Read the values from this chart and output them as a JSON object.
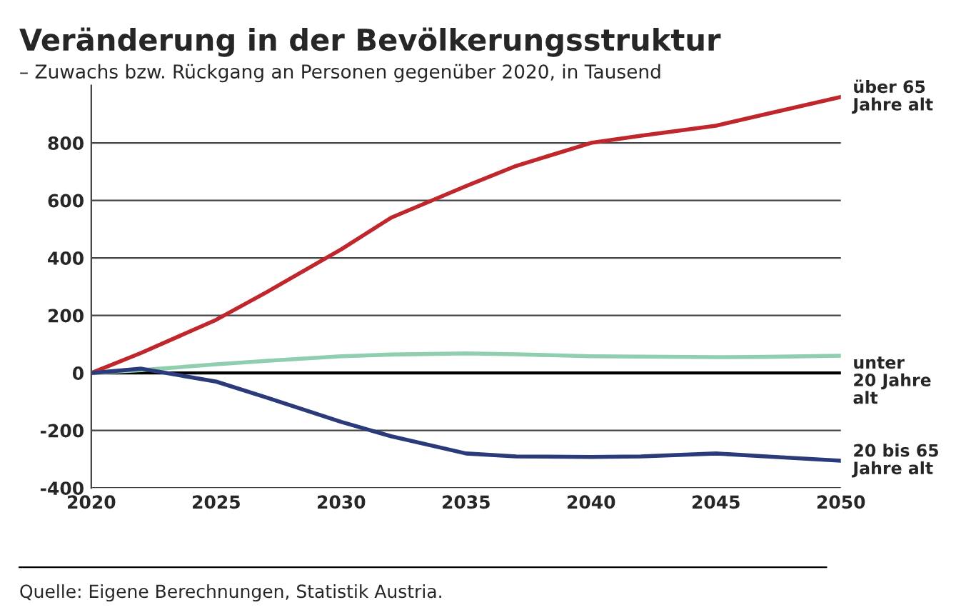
{
  "chart_data": {
    "type": "line",
    "title": "Veränderung in der Bevölkerungsstruktur",
    "subtitle": "– Zuwachs bzw. Rückgang an Personen gegenüber 2020, in Tausend",
    "x": [
      2020,
      2022,
      2025,
      2027,
      2030,
      2032,
      2035,
      2037,
      2040,
      2042,
      2045,
      2047,
      2050
    ],
    "series": [
      {
        "name": "über 65\nJahre alt",
        "color": "#c0272d",
        "values": [
          0,
          70,
          185,
          280,
          430,
          540,
          650,
          720,
          800,
          825,
          860,
          900,
          960
        ]
      },
      {
        "name": "unter\n20 Jahre\nalt",
        "color": "#8fcfb0",
        "values": [
          0,
          10,
          30,
          42,
          58,
          64,
          68,
          65,
          58,
          57,
          55,
          56,
          60
        ]
      },
      {
        "name": "20 bis 65\nJahre alt",
        "color": "#2b3a7a",
        "values": [
          0,
          15,
          -30,
          -85,
          -170,
          -220,
          -280,
          -290,
          -292,
          -290,
          -280,
          -290,
          -305
        ]
      }
    ],
    "xlim": [
      2020,
      2050
    ],
    "xticks": [
      2020,
      2025,
      2030,
      2035,
      2040,
      2045,
      2050
    ],
    "ylim": [
      -400,
      1000
    ],
    "yticks": [
      -400,
      -200,
      0,
      200,
      400,
      600,
      800
    ],
    "grid": "y",
    "legend": false,
    "line_style": "solid",
    "marker": "none",
    "ref_lines": [
      {
        "axis": "y",
        "value": 0,
        "color": "#000000"
      }
    ],
    "annotations": [
      "Quelle: Eigene Berechnungen, Statistik Austria."
    ]
  }
}
